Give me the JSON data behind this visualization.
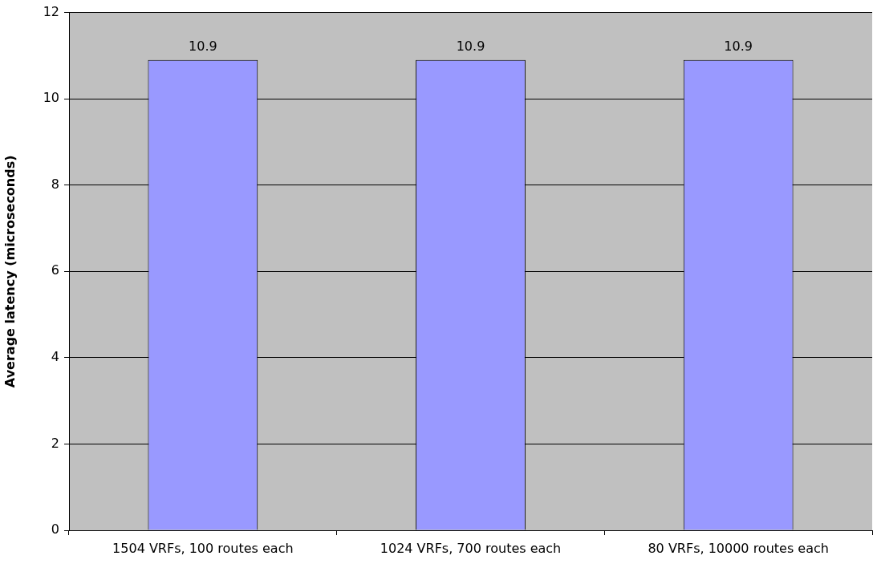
{
  "chart_data": {
    "type": "bar",
    "ylabel": "Average latency (microseconds)",
    "categories": [
      "1504 VRFs, 100 routes each",
      "1024 VRFs, 700 routes each",
      "80 VRFs, 10000 routes each"
    ],
    "values": [
      10.9,
      10.9,
      10.9
    ],
    "color": "#9999ff",
    "ylim": [
      0,
      12
    ],
    "yticks": [
      0,
      2,
      4,
      6,
      8,
      10,
      12
    ],
    "grid": "y",
    "data_labels": true,
    "legend": false
  }
}
